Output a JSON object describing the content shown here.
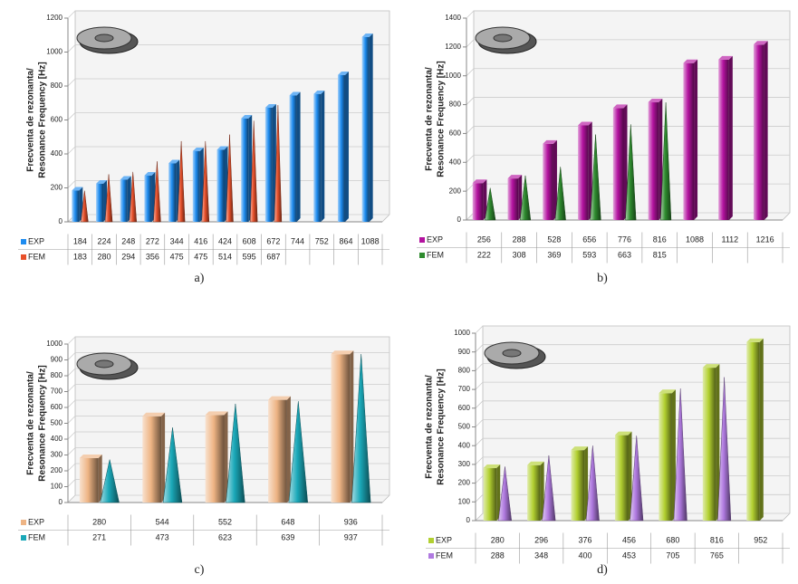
{
  "chart_data": [
    {
      "type": "bar",
      "caption": "a)",
      "ylabel": [
        "Frecventa de rezonanta/",
        "Resonance Frequency [Hz]"
      ],
      "ylim": [
        0,
        1200
      ],
      "yticks": [
        0,
        200,
        400,
        600,
        800,
        1000,
        1200
      ],
      "grid": true,
      "series": [
        {
          "name": "EXP",
          "color": "#1e8cf0",
          "values": [
            184,
            224,
            248,
            272,
            344,
            416,
            424,
            608,
            672,
            744,
            752,
            864,
            1088
          ]
        },
        {
          "name": "FEM",
          "color": "#e8502a",
          "values": [
            183,
            280,
            294,
            356,
            475,
            475,
            514,
            595,
            687,
            null,
            null,
            null,
            null
          ]
        }
      ]
    },
    {
      "type": "bar",
      "caption": "b)",
      "ylabel": [
        "Frecventa de rezonanta/",
        "Resonance Frequency [Hz]"
      ],
      "ylim": [
        0,
        1400
      ],
      "yticks": [
        0,
        200,
        400,
        600,
        800,
        1000,
        1200,
        1400
      ],
      "grid": true,
      "series": [
        {
          "name": "EXP",
          "color": "#b3129f",
          "values": [
            256,
            288,
            528,
            656,
            776,
            816,
            1088,
            1112,
            1216
          ]
        },
        {
          "name": "FEM",
          "color": "#2e8b2e",
          "values": [
            222,
            308,
            369,
            593,
            663,
            815,
            null,
            null,
            null
          ]
        }
      ]
    },
    {
      "type": "bar",
      "caption": "c)",
      "ylabel": [
        "Frecventa de rezonanta/",
        "Resonance Frequency [Hz]"
      ],
      "ylim": [
        0,
        1000
      ],
      "yticks": [
        0,
        100,
        200,
        300,
        400,
        500,
        600,
        700,
        800,
        900,
        1000
      ],
      "grid": true,
      "series": [
        {
          "name": "EXP",
          "color": "#eeb484",
          "values": [
            280,
            544,
            552,
            648,
            936
          ]
        },
        {
          "name": "FEM",
          "color": "#1aa8b8",
          "values": [
            271,
            473,
            623,
            639,
            937
          ]
        }
      ]
    },
    {
      "type": "bar",
      "caption": "d)",
      "ylabel": [
        "Frecventa de rezonanta/",
        "Resonance Frequency [Hz]"
      ],
      "ylim": [
        0,
        1000
      ],
      "yticks": [
        0,
        100,
        200,
        300,
        400,
        500,
        600,
        700,
        800,
        900,
        1000
      ],
      "grid": true,
      "series": [
        {
          "name": "EXP",
          "color": "#b2d030",
          "values": [
            280,
            296,
            376,
            456,
            680,
            816,
            952
          ]
        },
        {
          "name": "FEM",
          "color": "#b07ae0",
          "values": [
            288,
            348,
            400,
            453,
            705,
            765,
            null
          ]
        }
      ]
    }
  ]
}
